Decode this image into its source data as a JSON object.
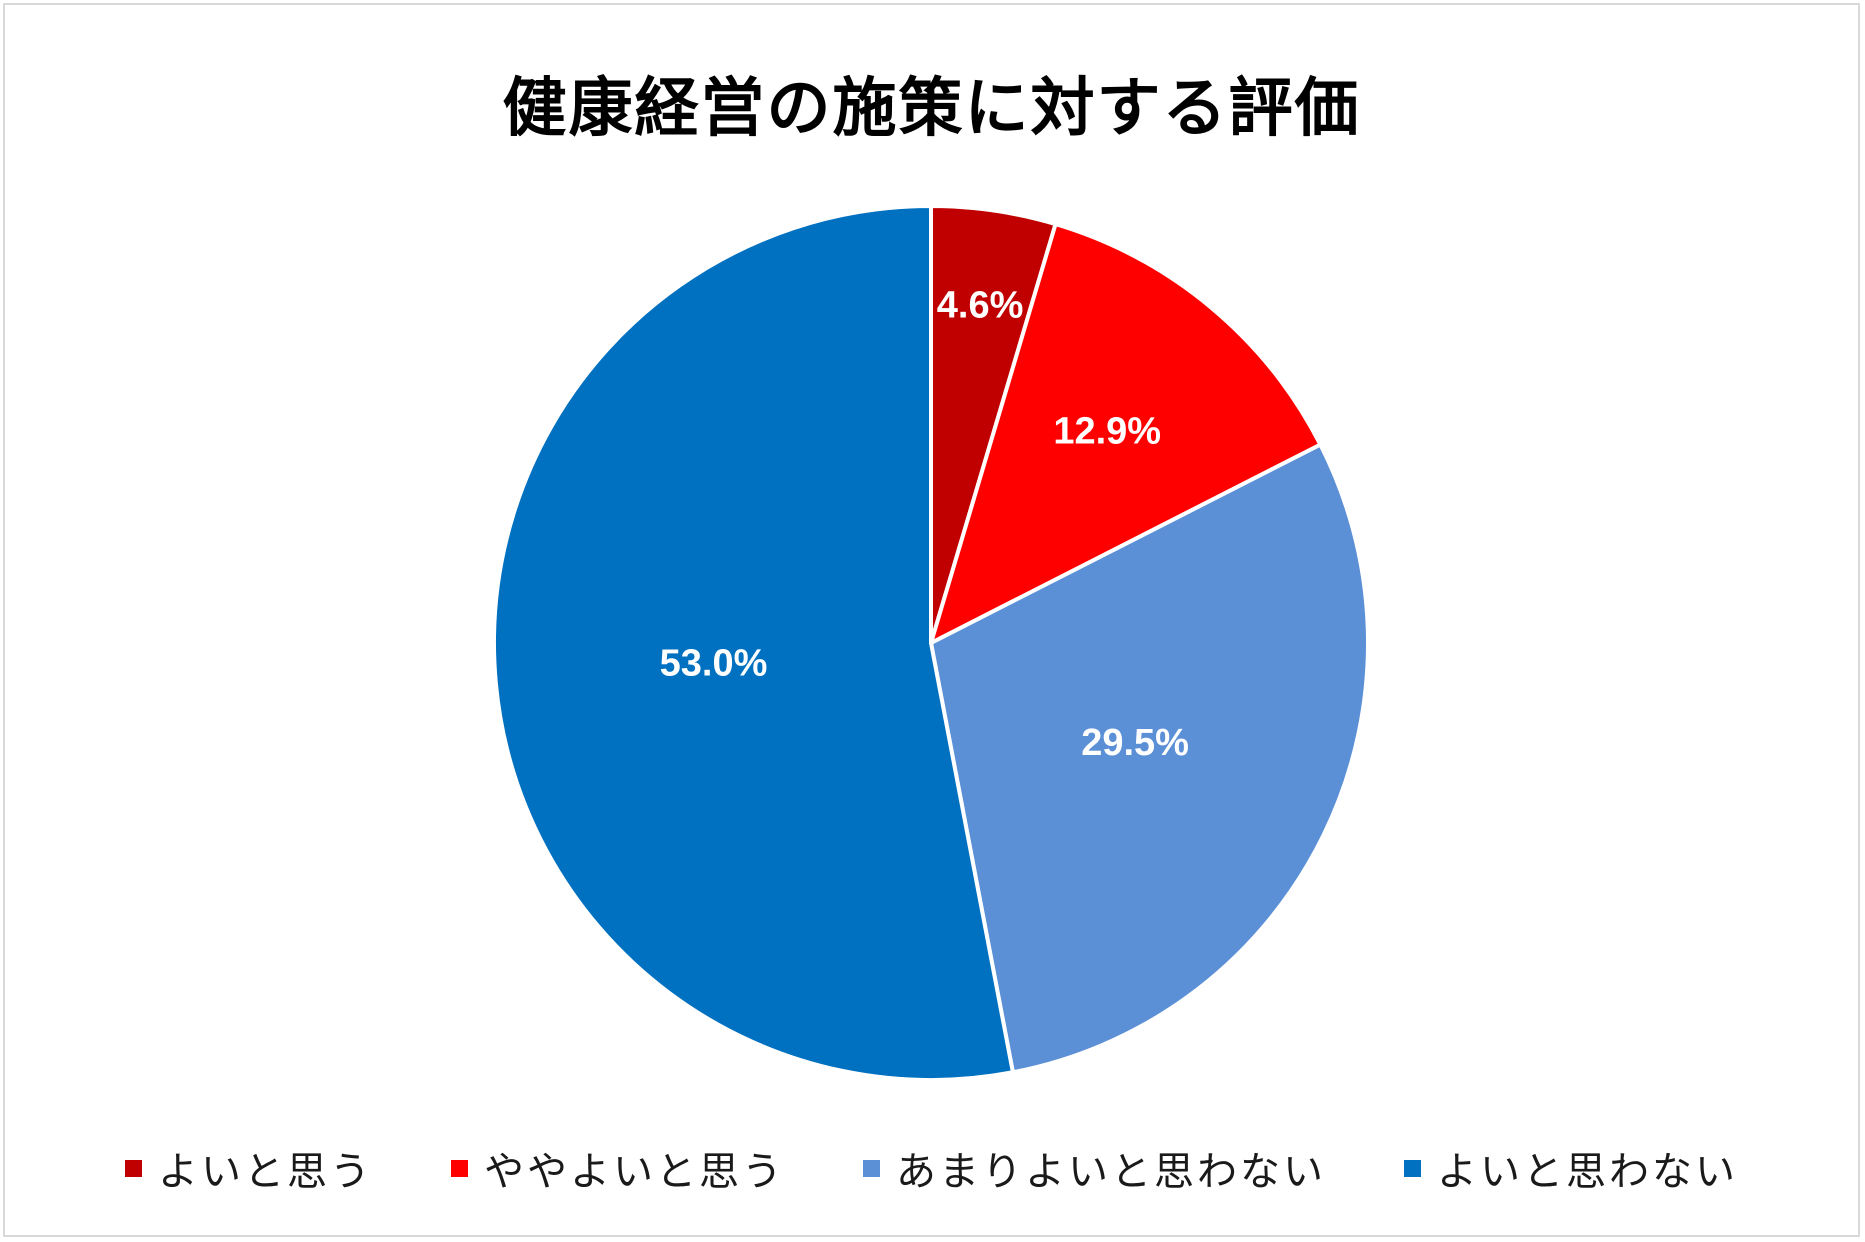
{
  "chart_data": {
    "type": "pie",
    "title": "健康経営の施策に対する評価",
    "categories": [
      "よいと思う",
      "ややよいと思う",
      "あまりよいと思わない",
      "よいと思わない"
    ],
    "values": [
      4.6,
      12.9,
      29.5,
      53.0
    ],
    "data_labels": [
      "4.6%",
      "12.9%",
      "29.5%",
      "53.0%"
    ],
    "colors": [
      "#c00000",
      "#ff0000",
      "#5b8fd6",
      "#0070c0"
    ],
    "start_angle_deg": 0,
    "direction": "clockwise",
    "legend_position": "bottom"
  }
}
